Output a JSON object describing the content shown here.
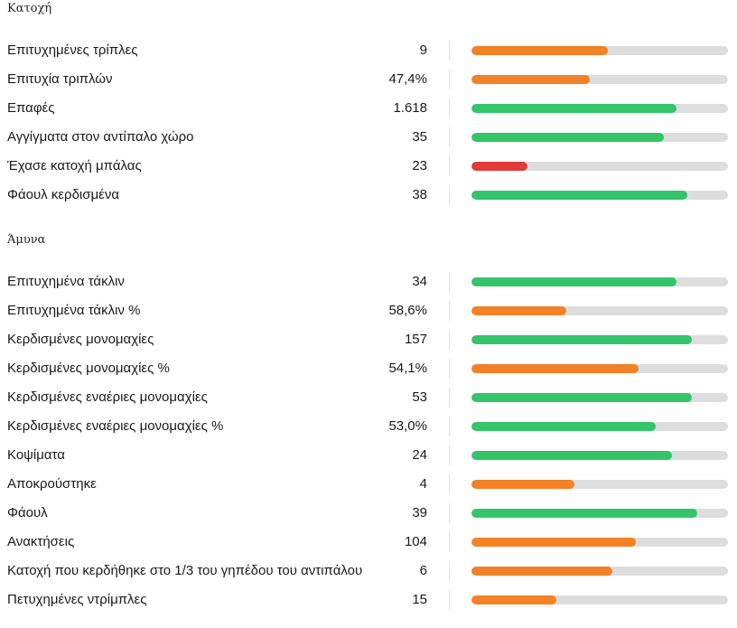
{
  "colors": {
    "green": "#34c46a",
    "orange": "#f38125",
    "red": "#e03a3a",
    "track": "#dddddd"
  },
  "sections": [
    {
      "title": "Κατοχή",
      "rows": [
        {
          "label": "Επιτυχημένες τρίπλες",
          "value": "9",
          "fill": 0.53,
          "status": "orange"
        },
        {
          "label": "Επιτυχία τριπλών",
          "value": "47,4%",
          "fill": 0.46,
          "status": "orange"
        },
        {
          "label": "Επαφές",
          "value": "1.618",
          "fill": 0.8,
          "status": "green"
        },
        {
          "label": "Αγγίγματα στον αντίπαλο χώρο",
          "value": "35",
          "fill": 0.75,
          "status": "green"
        },
        {
          "label": "Έχασε κατοχή μπάλας",
          "value": "23",
          "fill": 0.22,
          "status": "red"
        },
        {
          "label": "Φάουλ κερδισμένα",
          "value": "38",
          "fill": 0.84,
          "status": "green"
        }
      ]
    },
    {
      "title": "Άμυνα",
      "rows": [
        {
          "label": "Επιτυχημένα τάκλιν",
          "value": "34",
          "fill": 0.8,
          "status": "green"
        },
        {
          "label": "Επιτυχημένα τάκλιν %",
          "value": "58,6%",
          "fill": 0.37,
          "status": "orange"
        },
        {
          "label": "Κερδισμένες μονομαχίες",
          "value": "157",
          "fill": 0.86,
          "status": "green"
        },
        {
          "label": "Κερδισμένες μονομαχίες %",
          "value": "54,1%",
          "fill": 0.65,
          "status": "orange"
        },
        {
          "label": "Κερδισμένες εναέριες μονομαχίες",
          "value": "53",
          "fill": 0.86,
          "status": "green"
        },
        {
          "label": "Κερδισμένες εναέριες μονομαχίες %",
          "value": "53,0%",
          "fill": 0.72,
          "status": "green"
        },
        {
          "label": "Κοψίματα",
          "value": "24",
          "fill": 0.78,
          "status": "green"
        },
        {
          "label": "Αποκρούστηκε",
          "value": "4",
          "fill": 0.4,
          "status": "orange"
        },
        {
          "label": "Φάουλ",
          "value": "39",
          "fill": 0.88,
          "status": "green"
        },
        {
          "label": "Ανακτήσεις",
          "value": "104",
          "fill": 0.64,
          "status": "orange"
        },
        {
          "label": "Κατοχή που κερδήθηκε στο 1/3 του γηπέδου του αντιπάλου",
          "value": "6",
          "fill": 0.55,
          "status": "orange"
        },
        {
          "label": "Πετυχημένες ντρίμπλες",
          "value": "15",
          "fill": 0.33,
          "status": "orange"
        }
      ]
    }
  ]
}
